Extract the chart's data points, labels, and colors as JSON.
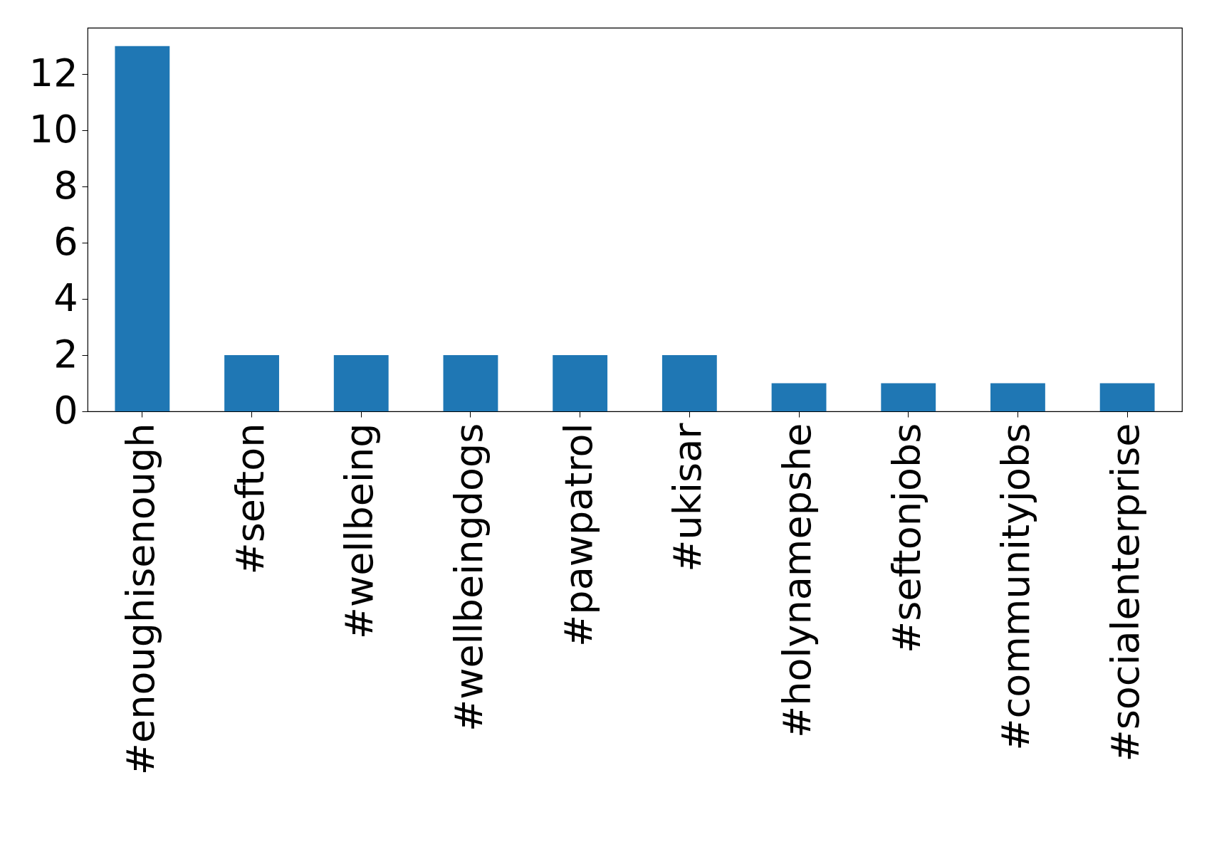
{
  "chart_data": {
    "type": "bar",
    "categories": [
      "#enoughisenough",
      "#sefton",
      "#wellbeing",
      "#wellbeingdogs",
      "#pawpatrol",
      "#ukisar",
      "#holynamepshe",
      "#seftonjobs",
      "#communityjobs",
      "#socialenterprise"
    ],
    "values": [
      13,
      2,
      2,
      2,
      2,
      2,
      1,
      1,
      1,
      1
    ],
    "color": "#1f77b4",
    "ylim": [
      0,
      13.65
    ],
    "yticks": [
      0,
      2,
      4,
      6,
      8,
      10,
      12
    ],
    "grid": false
  }
}
